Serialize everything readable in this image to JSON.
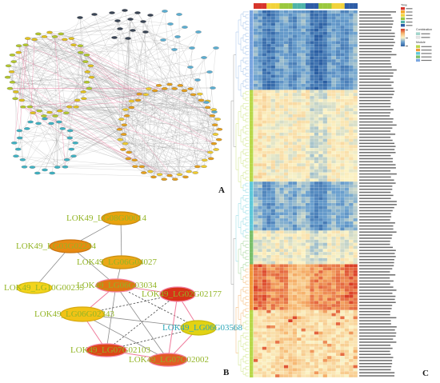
{
  "panel_labels": {
    "a": "A",
    "b": "B",
    "c": "C"
  },
  "network_a": {
    "colors": {
      "upper_left": "#b4c82c",
      "upper_left_alt": "#e2c21e",
      "top": "#394454",
      "right": "#5aaed2",
      "lower_right": "#e6a01c",
      "lower_right_alt": "#f0cc30",
      "lower_left": "#3fb3c4"
    },
    "edge_color": "#9c9c9c",
    "highlight_edge_color": "#f07ca0"
  },
  "network_b": {
    "nodes": [
      {
        "label": "LOK49_LG08G00014",
        "fill": "#e9a30e",
        "border": "#c88a10",
        "text_color": "#93b526"
      },
      {
        "label": "LOK49_LG03G02234",
        "fill": "#e88a12",
        "border": "#c87510",
        "text_color": "#93b526"
      },
      {
        "label": "LOK49_LG06G04027",
        "fill": "#eaa816",
        "border": "#c98e10",
        "text_color": "#93b526"
      },
      {
        "label": "LOK49_LG10G00235",
        "fill": "#f3d41c",
        "border": "#d6b810",
        "text_color": "#93b526"
      },
      {
        "label": "LOK49_LG06G03034",
        "fill": "#e07614",
        "border": "#f27fa0",
        "text_color": "#93b526"
      },
      {
        "label": "LOK49_LG02G02177",
        "fill": "#d83218",
        "border": "#f27fa0",
        "text_color": "#93b526"
      },
      {
        "label": "LOK49_LG06G02343",
        "fill": "#f1c316",
        "border": "#d7a810",
        "text_color": "#93b526"
      },
      {
        "label": "LOK49_LG06G03568",
        "fill": "#e2d212",
        "border": "#c9ba10",
        "text_color": "#2ba7b9"
      },
      {
        "label": "LOK49_LG07G02103",
        "fill": "#dc4818",
        "border": "#f27fa0",
        "text_color": "#93b526"
      },
      {
        "label": "LOK49_LG07G02002",
        "fill": "#e35a26",
        "border": "#f27fa0",
        "text_color": "#93b526"
      }
    ],
    "edges": [
      [
        0,
        1,
        "gray"
      ],
      [
        0,
        2,
        "gray"
      ],
      [
        1,
        3,
        "gray"
      ],
      [
        1,
        4,
        "gray"
      ],
      [
        2,
        4,
        "gray"
      ],
      [
        4,
        5,
        "pink"
      ],
      [
        4,
        6,
        "pink"
      ],
      [
        4,
        7,
        "dashed"
      ],
      [
        4,
        8,
        "gray"
      ],
      [
        4,
        9,
        "gray"
      ],
      [
        5,
        6,
        "dashed"
      ],
      [
        5,
        7,
        "pink"
      ],
      [
        5,
        8,
        "dashed"
      ],
      [
        5,
        9,
        "pink"
      ],
      [
        6,
        7,
        "gray"
      ],
      [
        6,
        8,
        "pink"
      ],
      [
        6,
        9,
        "gray"
      ],
      [
        7,
        8,
        "dashed"
      ],
      [
        7,
        9,
        "pink"
      ],
      [
        8,
        9,
        "pink"
      ]
    ],
    "edge_styles": {
      "gray": "#8c8c8c",
      "pink": "#f07c9c",
      "dashed": "#4a4a4a"
    }
  },
  "heatmap": {
    "color_scale": [
      "#2b5fa3",
      "#6ea3d0",
      "#fbf3c6",
      "#f6b26b",
      "#d7301f"
    ],
    "column_annotation_colors": [
      "#d7352b",
      "#f2d33b",
      "#9bc83e",
      "#4fb3a9",
      "#2d5ca6",
      "#9bc83e",
      "#f2d33b",
      "#2d5ca6"
    ],
    "legend": {
      "time_title": "Time",
      "time_colors": [
        "#d7352b",
        "#f5a623",
        "#f2d33b",
        "#9bc83e",
        "#4fb3a9",
        "#2d5ca6"
      ],
      "combination_title": "Combination",
      "combination_colors": [
        "#9fd6cc",
        "#e4e4e4"
      ],
      "module_title": "Module",
      "module_colors": [
        "#b8d84a",
        "#f09a3a",
        "#5ec8d8",
        "#7ac06a",
        "#7aa6e0"
      ]
    }
  }
}
